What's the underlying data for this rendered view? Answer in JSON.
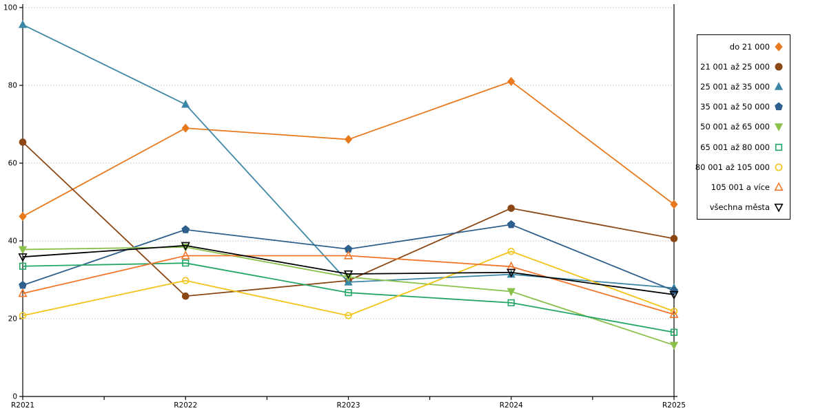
{
  "chart_data": {
    "type": "line",
    "title": "",
    "xlabel": "",
    "ylabel": "",
    "categories": [
      "R2021",
      "R2022",
      "R2023",
      "R2024",
      "R2025"
    ],
    "ylim": [
      0,
      100
    ],
    "yticks": [
      0,
      20,
      40,
      60,
      80,
      100
    ],
    "grid": "horizontal dashed gridlines at 20,40,60,80,100",
    "legend_position": "outside-right",
    "axis_color": "#000000",
    "gridline_color": "#bfbfbf",
    "series": [
      {
        "name": "do 21 000",
        "color": "#e8791d",
        "marker": "diamond",
        "marker_fill": "filled",
        "values": [
          46.3,
          69.0,
          66.1,
          81.0,
          49.4
        ]
      },
      {
        "name": "21 001 až 25 000",
        "color": "#8b4715",
        "marker": "circle",
        "marker_fill": "filled",
        "values": [
          65.4,
          25.8,
          29.8,
          48.4,
          40.6
        ]
      },
      {
        "name": "25 001 až 35 000",
        "color": "#3d87a6",
        "marker": "triangle-up",
        "marker_fill": "filled",
        "values": [
          95.6,
          75.1,
          29.4,
          31.4,
          27.9
        ]
      },
      {
        "name": "35 001 až 50 000",
        "color": "#2f5f8c",
        "marker": "pentagon",
        "marker_fill": "filled",
        "values": [
          28.6,
          42.9,
          37.9,
          44.2,
          27.2
        ]
      },
      {
        "name": "50 001 až 65 000",
        "color": "#8bc04c",
        "marker": "triangle-down",
        "marker_fill": "filled",
        "values": [
          37.8,
          38.4,
          30.7,
          27.0,
          13.2
        ]
      },
      {
        "name": "65 001 až 80 000",
        "color": "#22a566",
        "marker": "square",
        "marker_fill": "open",
        "values": [
          33.5,
          34.3,
          26.7,
          24.1,
          16.5
        ]
      },
      {
        "name": "80 001 až 105 000",
        "color": "#f2c318",
        "marker": "circle",
        "marker_fill": "open",
        "values": [
          20.8,
          29.8,
          20.8,
          37.3,
          21.9
        ]
      },
      {
        "name": "105 001 a více",
        "color": "#f2762a",
        "marker": "triangle-up",
        "marker_fill": "open",
        "values": [
          26.5,
          36.2,
          36.2,
          33.4,
          21.1
        ]
      },
      {
        "name": "všechna města",
        "color": "#000000",
        "marker": "triangle-down",
        "marker_fill": "open",
        "values": [
          35.9,
          38.8,
          31.5,
          31.9,
          26.2
        ]
      }
    ]
  }
}
